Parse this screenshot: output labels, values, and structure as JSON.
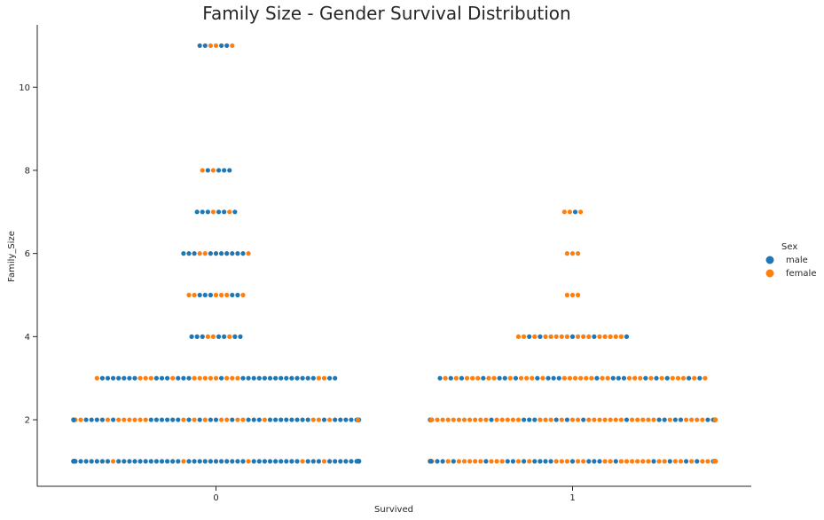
{
  "chart_data": {
    "type": "scatter",
    "title": "Family Size - Gender Survival Distribution",
    "xlabel": "Survived",
    "ylabel": "Family_Size",
    "categories": [
      "0",
      "1"
    ],
    "yticks": [
      "2",
      "4",
      "6",
      "8",
      "10"
    ],
    "ylim": [
      0.4,
      11.5
    ],
    "grid": false,
    "legend": {
      "title": "Sex",
      "placement": "right",
      "entries": [
        {
          "name": "male",
          "color": "#1f77b4"
        },
        {
          "name": "female",
          "color": "#ff7f0e"
        }
      ]
    },
    "series": [
      {
        "name": "male",
        "color": "#1f77b4",
        "counts": {
          "0": {
            "1": 250,
            "2": 65,
            "3": 30,
            "4": 7,
            "5": 5,
            "6": 10,
            "7": 6,
            "8": 4,
            "11": 4
          },
          "1": {
            "1": 50,
            "2": 25,
            "3": 20,
            "4": 5,
            "5": 0,
            "6": 0,
            "7": 1,
            "8": 0,
            "11": 0
          }
        }
      },
      {
        "name": "female",
        "color": "#ff7f0e",
        "counts": {
          "0": {
            "1": 18,
            "2": 35,
            "3": 15,
            "4": 3,
            "5": 6,
            "6": 3,
            "7": 2,
            "8": 2,
            "11": 3
          },
          "1": {
            "1": 100,
            "2": 65,
            "3": 30,
            "4": 16,
            "5": 3,
            "6": 3,
            "7": 3,
            "8": 0,
            "11": 0
          }
        }
      }
    ]
  }
}
